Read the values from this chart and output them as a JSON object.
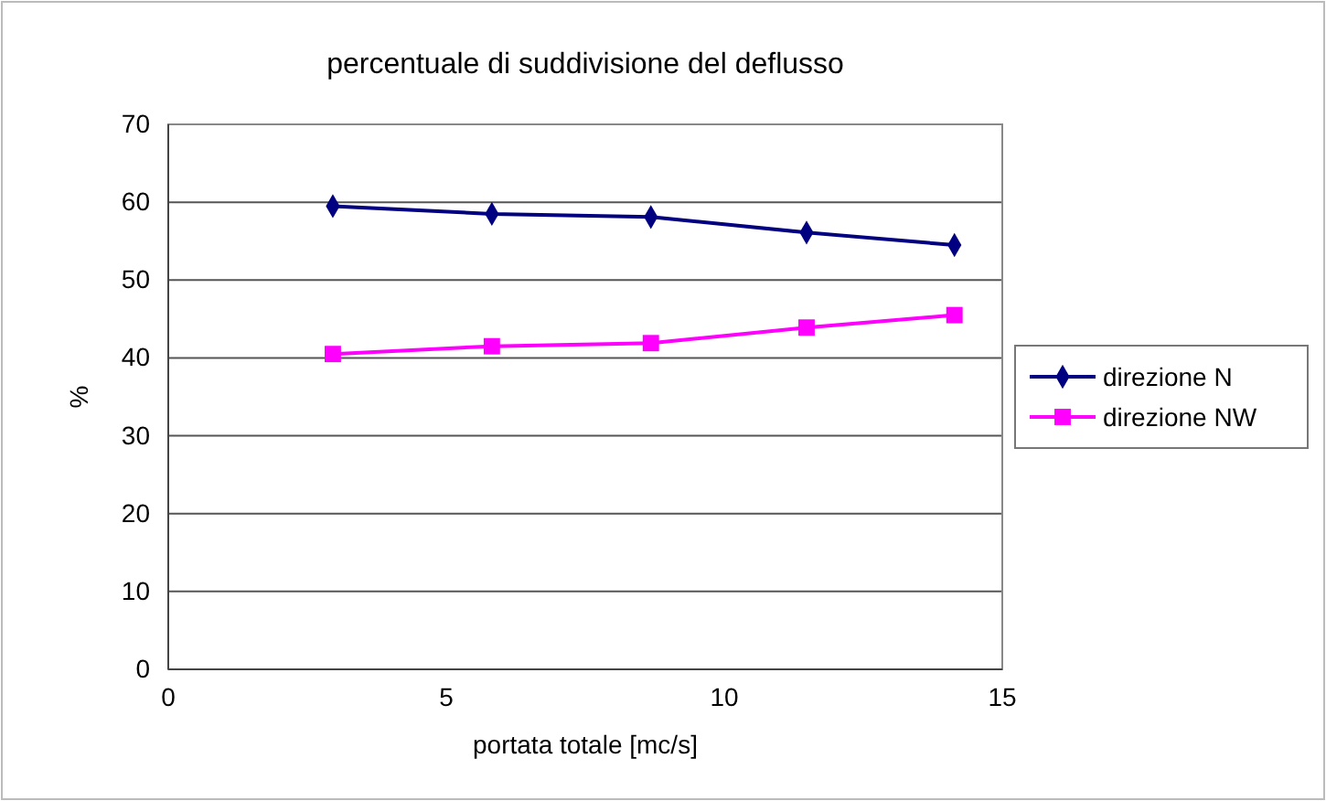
{
  "chart_data": {
    "type": "line",
    "title": "percentuale di suddivisione del deflusso",
    "xlabel": "portata totale [mc/s]",
    "ylabel": "%",
    "x": [
      2.96,
      5.82,
      8.68,
      11.48,
      14.14
    ],
    "series": [
      {
        "name": "direzione N",
        "color": "#000080",
        "marker": "diamond",
        "values": [
          59.5,
          58.5,
          58.1,
          56.1,
          54.5
        ]
      },
      {
        "name": "direzione NW",
        "color": "#ff00ff",
        "marker": "square",
        "values": [
          40.5,
          41.5,
          41.9,
          43.9,
          45.5
        ]
      }
    ],
    "xlim": [
      0,
      15
    ],
    "xticks": [
      0,
      5,
      10,
      15
    ],
    "ylim": [
      0,
      70
    ],
    "yticks": [
      0,
      10,
      20,
      30,
      40,
      50,
      60,
      70
    ],
    "grid": "y",
    "legend": "right"
  }
}
